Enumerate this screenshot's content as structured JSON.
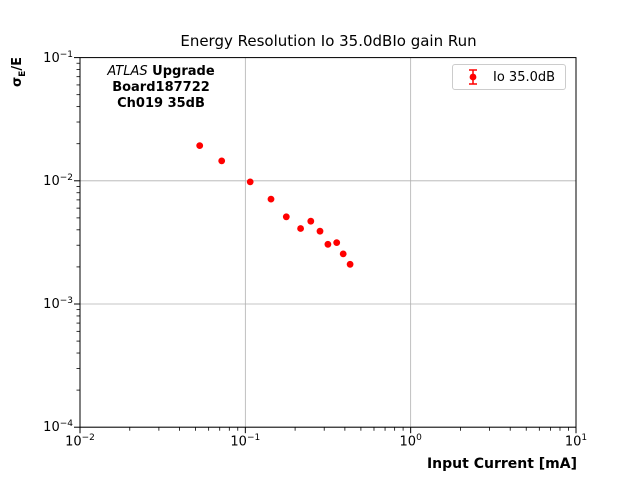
{
  "chart_data": {
    "type": "scatter",
    "title": "Energy Resolution Io 35.0dBIo gain Run",
    "xlabel": "Input Current [mA]",
    "ylabel": "σE/E",
    "ylabel_parts": {
      "prefix": "σ",
      "sub": "E",
      "suffix": "/E"
    },
    "x_scale": "log",
    "y_scale": "log",
    "xlim": [
      0.01,
      10
    ],
    "ylim": [
      0.0001,
      0.1
    ],
    "grid": "major",
    "x_ticks": [
      {
        "base": "10",
        "exp": "−2",
        "value": 0.01
      },
      {
        "base": "10",
        "exp": "−1",
        "value": 0.1
      },
      {
        "base": "10",
        "exp": "0",
        "value": 1
      },
      {
        "base": "10",
        "exp": "1",
        "value": 10
      }
    ],
    "y_ticks": [
      {
        "base": "10",
        "exp": "−1",
        "value": 0.1
      },
      {
        "base": "10",
        "exp": "−2",
        "value": 0.01
      },
      {
        "base": "10",
        "exp": "−3",
        "value": 0.001
      },
      {
        "base": "10",
        "exp": "−4",
        "value": 0.0001
      }
    ],
    "series": [
      {
        "name": "Io 35.0dB",
        "marker": "circle-errorbar",
        "marker_color": "#ff0000",
        "x": [
          0.053,
          0.072,
          0.107,
          0.143,
          0.177,
          0.216,
          0.249,
          0.283,
          0.316,
          0.357,
          0.391,
          0.43
        ],
        "y": [
          0.0193,
          0.0145,
          0.0098,
          0.0071,
          0.0051,
          0.0041,
          0.0047,
          0.0039,
          0.00305,
          0.00315,
          0.00255,
          0.0021
        ]
      }
    ],
    "legend": {
      "label": "Io 35.0dB",
      "position": "upper right"
    },
    "annotation": {
      "line1_italic": "ATLAS",
      "line1_bold": "Upgrade",
      "line2": "Board187722",
      "line3": "Ch019 35dB"
    },
    "colors": {
      "marker": "#ff0000",
      "grid": "#b0b0b0",
      "axis": "#000000",
      "legend_border": "#cccccc"
    }
  }
}
